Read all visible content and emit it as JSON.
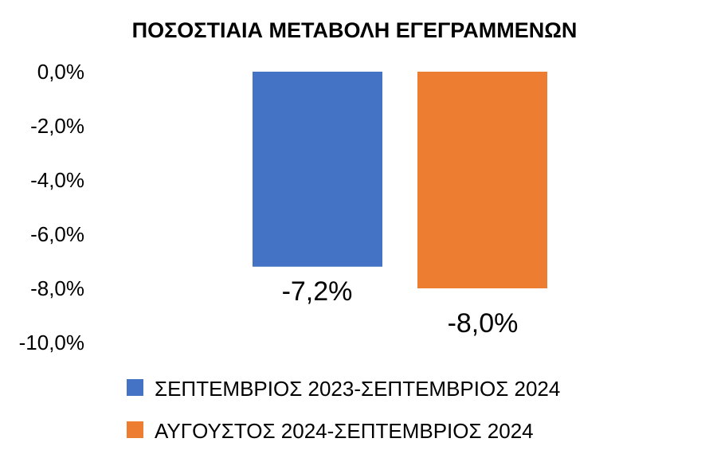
{
  "chart_data": {
    "type": "bar",
    "title": "ΠΟΣΟΣΤΙΑΙΑ ΜΕΤΑΒΟΛΗ ΕΓΕΓΡΑΜΜΕΝΩΝ",
    "xlabel": "",
    "ylabel": "",
    "ylim": [
      -10.0,
      0.0
    ],
    "yticks": [
      0.0,
      -2.0,
      -4.0,
      -6.0,
      -8.0,
      -10.0
    ],
    "ytick_labels": [
      "0,0%",
      "-2,0%",
      "-4,0%",
      "-6,0%",
      "-8,0%",
      "-10,0%"
    ],
    "grid": false,
    "legend_position": "bottom",
    "series": [
      {
        "name": "ΣΕΠΤΕΜΒΡΙΟΣ 2023-ΣΕΠΤΕΜΒΡΙΟΣ 2024",
        "value": -7.2,
        "label": "-7,2%",
        "color": "#4472C4"
      },
      {
        "name": "ΑΥΓΟΥΣΤΟΣ 2024-ΣΕΠΤΕΜΒΡΙΟΣ 2024",
        "value": -8.0,
        "label": "-8,0%",
        "color": "#ED7D31"
      }
    ]
  }
}
